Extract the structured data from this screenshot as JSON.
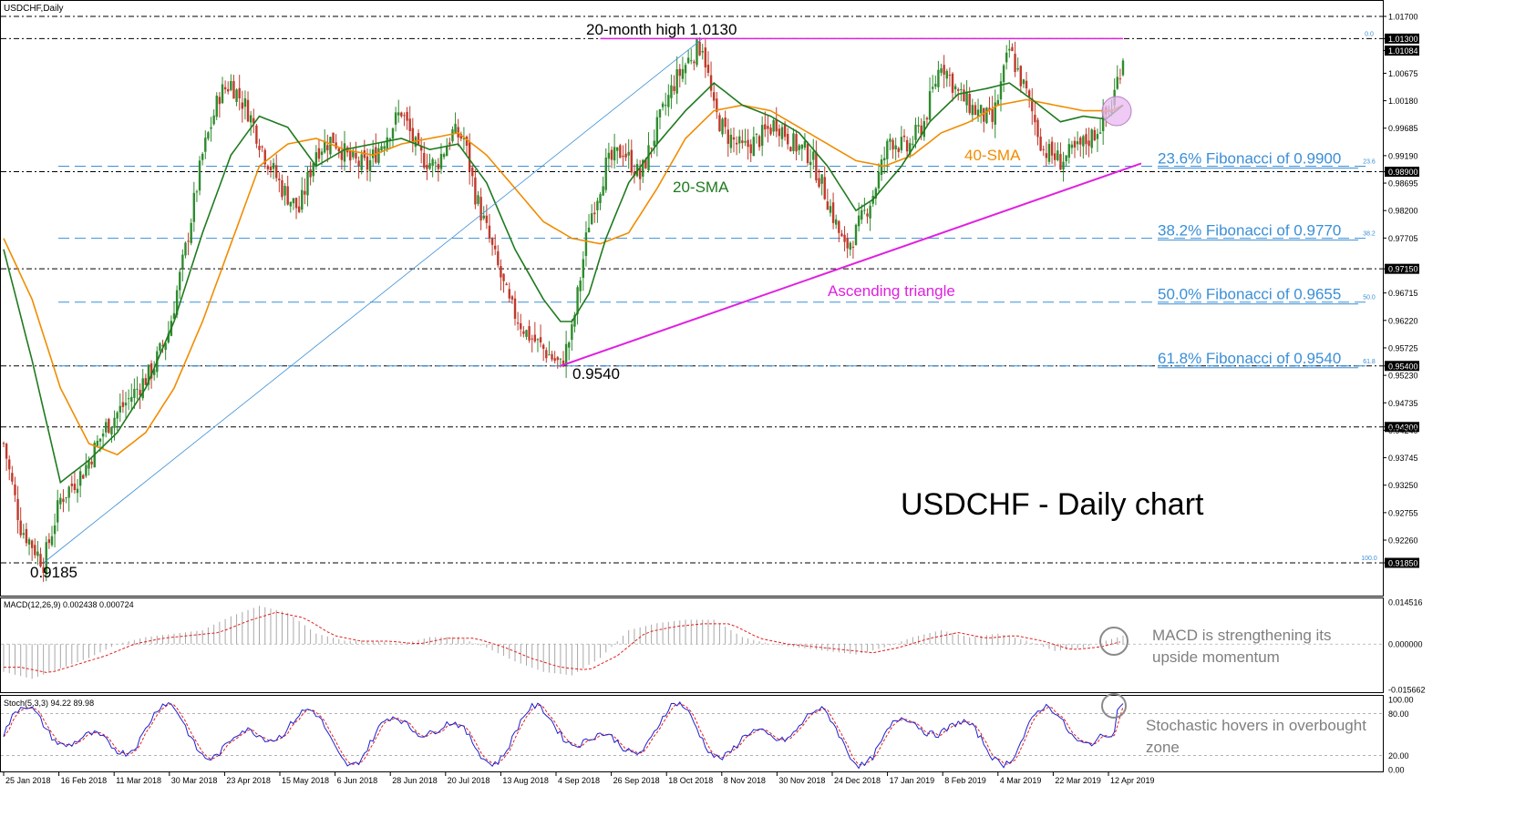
{
  "chart_data": {
    "type": "candlestick",
    "symbol_label": "USDCHF,Daily",
    "title": "USDCHF - Daily chart",
    "colors": {
      "up": "#2e8b2e",
      "down": "#c0392b",
      "sma20": "#1f7a1f",
      "sma40": "#f08c00",
      "fib": "#3b8fd6",
      "triangle": "#e020e0",
      "level": "#000000",
      "diagonal": "#3b8fd6"
    },
    "price_axis": {
      "min": 0.916,
      "max": 1.0187,
      "ticks": [
        "1.01700",
        "1.01300",
        "1.01084",
        "1.00675",
        "1.00180",
        "0.99685",
        "0.99190",
        "0.98900",
        "0.98695",
        "0.98200",
        "0.97705",
        "0.97150",
        "0.96715",
        "0.96220",
        "0.95725",
        "0.95400",
        "0.95230",
        "0.94735",
        "0.94300",
        "0.94240",
        "0.93745",
        "0.93250",
        "0.92755",
        "0.92260",
        "0.91850"
      ],
      "highlighted_ticks": [
        "1.01300",
        "1.01084",
        "0.98900",
        "0.97150",
        "0.95400",
        "0.94300",
        "0.91850"
      ]
    },
    "x_axis": {
      "labels": [
        "25 Jan 2018",
        "16 Feb 2018",
        "11 Mar 2018",
        "30 Mar 2018",
        "23 Apr 2018",
        "15 May 2018",
        "6 Jun 2018",
        "28 Jun 2018",
        "20 Jul 2018",
        "13 Aug 2018",
        "4 Sep 2018",
        "26 Sep 2018",
        "18 Oct 2018",
        "8 Nov 2018",
        "30 Nov 2018",
        "24 Dec 2018",
        "17 Jan 2019",
        "8 Feb 2019",
        "4 Mar 2019",
        "22 Mar 2019",
        "12 Apr 2019"
      ]
    },
    "levels": [
      1.017,
      1.013,
      0.989,
      0.9715,
      0.954,
      0.943,
      0.9185
    ],
    "price_path": [
      [
        0,
        0.94
      ],
      [
        6,
        0.925
      ],
      [
        14,
        0.9185
      ],
      [
        20,
        0.93
      ],
      [
        28,
        0.935
      ],
      [
        36,
        0.943
      ],
      [
        44,
        0.948
      ],
      [
        52,
        0.953
      ],
      [
        58,
        0.96
      ],
      [
        64,
        0.975
      ],
      [
        70,
        0.992
      ],
      [
        76,
        1.003
      ],
      [
        80,
        1.005
      ],
      [
        86,
        1.0
      ],
      [
        92,
        0.992
      ],
      [
        98,
        0.986
      ],
      [
        104,
        0.982
      ],
      [
        110,
        0.993
      ],
      [
        116,
        0.995
      ],
      [
        122,
        0.991
      ],
      [
        128,
        0.99
      ],
      [
        134,
        0.995
      ],
      [
        140,
        1.0
      ],
      [
        146,
        0.992
      ],
      [
        152,
        0.99
      ],
      [
        158,
        0.996
      ],
      [
        162,
        0.995
      ],
      [
        166,
        0.985
      ],
      [
        172,
        0.975
      ],
      [
        178,
        0.965
      ],
      [
        184,
        0.96
      ],
      [
        190,
        0.957
      ],
      [
        196,
        0.954
      ],
      [
        200,
        0.96
      ],
      [
        206,
        0.98
      ],
      [
        212,
        0.99
      ],
      [
        218,
        0.993
      ],
      [
        224,
        0.988
      ],
      [
        230,
        0.997
      ],
      [
        236,
        1.005
      ],
      [
        242,
        1.01
      ],
      [
        246,
        1.012
      ],
      [
        250,
        1.0
      ],
      [
        254,
        0.996
      ],
      [
        260,
        0.993
      ],
      [
        266,
        0.995
      ],
      [
        272,
        0.998
      ],
      [
        278,
        0.994
      ],
      [
        284,
        0.992
      ],
      [
        290,
        0.984
      ],
      [
        296,
        0.975
      ],
      [
        300,
        0.978
      ],
      [
        306,
        0.985
      ],
      [
        312,
        0.995
      ],
      [
        318,
        0.993
      ],
      [
        324,
        0.998
      ],
      [
        330,
        1.009
      ],
      [
        336,
        1.003
      ],
      [
        342,
        1.0
      ],
      [
        348,
        0.998
      ],
      [
        354,
        1.011
      ],
      [
        360,
        1.003
      ],
      [
        366,
        0.993
      ],
      [
        372,
        0.991
      ],
      [
        378,
        0.993
      ],
      [
        384,
        0.996
      ],
      [
        390,
        1.001
      ],
      [
        394,
        1.01
      ]
    ],
    "sma20_path": [
      [
        0,
        0.975
      ],
      [
        10,
        0.955
      ],
      [
        20,
        0.933
      ],
      [
        30,
        0.937
      ],
      [
        40,
        0.942
      ],
      [
        50,
        0.95
      ],
      [
        60,
        0.962
      ],
      [
        70,
        0.978
      ],
      [
        80,
        0.992
      ],
      [
        90,
        0.999
      ],
      [
        100,
        0.997
      ],
      [
        110,
        0.99
      ],
      [
        120,
        0.993
      ],
      [
        130,
        0.994
      ],
      [
        140,
        0.995
      ],
      [
        150,
        0.993
      ],
      [
        160,
        0.994
      ],
      [
        170,
        0.987
      ],
      [
        180,
        0.975
      ],
      [
        190,
        0.966
      ],
      [
        196,
        0.962
      ],
      [
        200,
        0.962
      ],
      [
        206,
        0.967
      ],
      [
        212,
        0.977
      ],
      [
        220,
        0.987
      ],
      [
        230,
        0.994
      ],
      [
        240,
        1.0
      ],
      [
        250,
        1.005
      ],
      [
        260,
        1.001
      ],
      [
        270,
        0.999
      ],
      [
        280,
        0.996
      ],
      [
        290,
        0.99
      ],
      [
        300,
        0.982
      ],
      [
        306,
        0.984
      ],
      [
        316,
        0.99
      ],
      [
        326,
        0.998
      ],
      [
        336,
        1.003
      ],
      [
        346,
        1.004
      ],
      [
        354,
        1.005
      ],
      [
        362,
        1.002
      ],
      [
        372,
        0.998
      ],
      [
        380,
        0.999
      ],
      [
        388,
        0.9985
      ],
      [
        394,
        1.001
      ]
    ],
    "sma40_path": [
      [
        0,
        0.977
      ],
      [
        10,
        0.966
      ],
      [
        20,
        0.95
      ],
      [
        30,
        0.94
      ],
      [
        40,
        0.938
      ],
      [
        50,
        0.942
      ],
      [
        60,
        0.95
      ],
      [
        70,
        0.962
      ],
      [
        80,
        0.976
      ],
      [
        90,
        0.99
      ],
      [
        100,
        0.994
      ],
      [
        110,
        0.995
      ],
      [
        120,
        0.993
      ],
      [
        130,
        0.992
      ],
      [
        140,
        0.994
      ],
      [
        150,
        0.995
      ],
      [
        160,
        0.996
      ],
      [
        170,
        0.992
      ],
      [
        180,
        0.986
      ],
      [
        190,
        0.98
      ],
      [
        200,
        0.977
      ],
      [
        210,
        0.976
      ],
      [
        220,
        0.978
      ],
      [
        230,
        0.986
      ],
      [
        240,
        0.995
      ],
      [
        250,
        1.0
      ],
      [
        260,
        1.001
      ],
      [
        270,
        1.0
      ],
      [
        280,
        0.997
      ],
      [
        290,
        0.994
      ],
      [
        300,
        0.991
      ],
      [
        310,
        0.99
      ],
      [
        320,
        0.992
      ],
      [
        330,
        0.996
      ],
      [
        340,
        0.998
      ],
      [
        350,
        1.001
      ],
      [
        360,
        1.002
      ],
      [
        370,
        1.001
      ],
      [
        380,
        1.0
      ],
      [
        390,
        1.0
      ],
      [
        394,
        1.001
      ]
    ],
    "fibonacci": [
      {
        "ratio_label": "0.0",
        "price": 1.013,
        "label": ""
      },
      {
        "ratio_label": "23.6",
        "price": 0.99,
        "label": "23.6% Fibonacci of 0.9900"
      },
      {
        "ratio_label": "38.2",
        "price": 0.977,
        "label": "38.2% Fibonacci of 0.9770"
      },
      {
        "ratio_label": "50.0",
        "price": 0.9655,
        "label": "50.0% Fibonacci of 0.9655"
      },
      {
        "ratio_label": "61.8",
        "price": 0.954,
        "label": "61.8% Fibonacci of 0.9540"
      },
      {
        "ratio_label": "100.0",
        "price": 0.9185,
        "label": ""
      }
    ],
    "annotations": {
      "high_label": "20-month high 1.0130",
      "low1_label": "0.9185",
      "low2_label": "0.9540",
      "sma20_label": "20-SMA",
      "sma40_label": "40-SMA",
      "triangle_label": "Ascending triangle"
    },
    "macd": {
      "label": "MACD(12,26,9) 0.002438 0.000724",
      "ticks": [
        "0.014516",
        "0.000000",
        "-0.015662"
      ],
      "range": [
        -0.015662,
        0.014516
      ],
      "path": [
        [
          0,
          -0.008
        ],
        [
          10,
          -0.01
        ],
        [
          20,
          -0.007
        ],
        [
          30,
          -0.004
        ],
        [
          40,
          0.0
        ],
        [
          50,
          0.002
        ],
        [
          60,
          0.003
        ],
        [
          70,
          0.004
        ],
        [
          80,
          0.008
        ],
        [
          90,
          0.011
        ],
        [
          100,
          0.009
        ],
        [
          110,
          0.003
        ],
        [
          120,
          0.001
        ],
        [
          130,
          0.001
        ],
        [
          140,
          0.0
        ],
        [
          150,
          0.002
        ],
        [
          160,
          0.002
        ],
        [
          170,
          -0.001
        ],
        [
          180,
          -0.005
        ],
        [
          190,
          -0.008
        ],
        [
          200,
          -0.009
        ],
        [
          210,
          -0.004
        ],
        [
          220,
          0.004
        ],
        [
          230,
          0.006
        ],
        [
          240,
          0.007
        ],
        [
          250,
          0.007
        ],
        [
          260,
          0.002
        ],
        [
          270,
          0.0
        ],
        [
          280,
          -0.001
        ],
        [
          290,
          -0.002
        ],
        [
          300,
          -0.003
        ],
        [
          310,
          -0.001
        ],
        [
          320,
          0.002
        ],
        [
          330,
          0.004
        ],
        [
          340,
          0.002
        ],
        [
          350,
          0.003
        ],
        [
          360,
          0.001
        ],
        [
          370,
          -0.002
        ],
        [
          380,
          -0.001
        ],
        [
          388,
          0.001
        ],
        [
          394,
          0.0024
        ]
      ],
      "annotation": [
        "MACD is strengthening its",
        "upside momentum"
      ]
    },
    "stoch": {
      "label": "Stoch(5,3,3) 94.22 89.98",
      "ticks": [
        "100.00",
        "80.00",
        "20.00",
        "0.00"
      ],
      "range": [
        0,
        100
      ],
      "annotation": [
        "Stochastic hovers in overbought",
        "zone"
      ]
    }
  }
}
